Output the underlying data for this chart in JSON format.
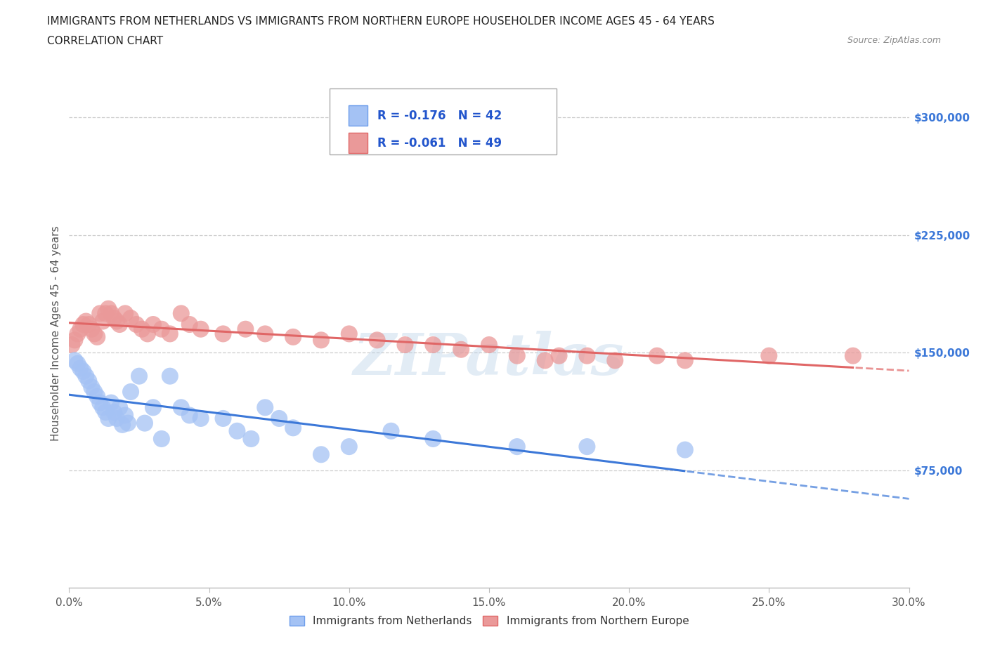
{
  "title_line1": "IMMIGRANTS FROM NETHERLANDS VS IMMIGRANTS FROM NORTHERN EUROPE HOUSEHOLDER INCOME AGES 45 - 64 YEARS",
  "title_line2": "CORRELATION CHART",
  "source": "Source: ZipAtlas.com",
  "ylabel": "Householder Income Ages 45 - 64 years",
  "xlim": [
    0.0,
    0.3
  ],
  "ylim": [
    0,
    325000
  ],
  "xtick_labels": [
    "0.0%",
    "5.0%",
    "10.0%",
    "15.0%",
    "20.0%",
    "25.0%",
    "30.0%"
  ],
  "xtick_values": [
    0.0,
    0.05,
    0.1,
    0.15,
    0.2,
    0.25,
    0.3
  ],
  "ytick_labels": [
    "$75,000",
    "$150,000",
    "$225,000",
    "$300,000"
  ],
  "ytick_values": [
    75000,
    150000,
    225000,
    300000
  ],
  "hgrid_values": [
    75000,
    150000,
    225000,
    300000
  ],
  "netherlands_color": "#a4c2f4",
  "netherlands_edge": "#6d9eeb",
  "northern_europe_color": "#ea9999",
  "northern_europe_edge": "#e06666",
  "blue_line_color": "#3c78d8",
  "pink_line_color": "#e06666",
  "legend_R_netherlands": "-0.176",
  "legend_N_netherlands": "42",
  "legend_R_northern": "-0.061",
  "legend_N_northern": "49",
  "watermark": "ZIPatlas",
  "legend1_label": "Immigrants from Netherlands",
  "legend2_label": "Immigrants from Northern Europe",
  "netherlands_x": [
    0.002,
    0.003,
    0.004,
    0.005,
    0.006,
    0.007,
    0.008,
    0.009,
    0.01,
    0.011,
    0.012,
    0.013,
    0.014,
    0.015,
    0.016,
    0.017,
    0.018,
    0.019,
    0.02,
    0.021,
    0.022,
    0.025,
    0.027,
    0.03,
    0.033,
    0.036,
    0.04,
    0.043,
    0.047,
    0.055,
    0.06,
    0.065,
    0.07,
    0.075,
    0.08,
    0.09,
    0.1,
    0.115,
    0.13,
    0.16,
    0.185,
    0.22
  ],
  "netherlands_y": [
    145000,
    143000,
    140000,
    138000,
    135000,
    132000,
    128000,
    125000,
    122000,
    118000,
    115000,
    112000,
    108000,
    118000,
    112000,
    108000,
    115000,
    104000,
    110000,
    105000,
    125000,
    135000,
    105000,
    115000,
    95000,
    135000,
    115000,
    110000,
    108000,
    108000,
    100000,
    95000,
    115000,
    108000,
    102000,
    85000,
    90000,
    100000,
    95000,
    90000,
    90000,
    88000
  ],
  "northern_europe_x": [
    0.001,
    0.002,
    0.003,
    0.004,
    0.005,
    0.006,
    0.007,
    0.008,
    0.009,
    0.01,
    0.011,
    0.012,
    0.013,
    0.014,
    0.015,
    0.016,
    0.017,
    0.018,
    0.02,
    0.022,
    0.024,
    0.026,
    0.028,
    0.03,
    0.033,
    0.036,
    0.04,
    0.043,
    0.047,
    0.055,
    0.063,
    0.07,
    0.08,
    0.09,
    0.1,
    0.11,
    0.12,
    0.13,
    0.14,
    0.15,
    0.16,
    0.17,
    0.175,
    0.185,
    0.195,
    0.21,
    0.22,
    0.25,
    0.28
  ],
  "northern_europe_y": [
    155000,
    158000,
    162000,
    165000,
    168000,
    170000,
    168000,
    165000,
    162000,
    160000,
    175000,
    170000,
    175000,
    178000,
    175000,
    172000,
    170000,
    168000,
    175000,
    172000,
    168000,
    165000,
    162000,
    168000,
    165000,
    162000,
    175000,
    168000,
    165000,
    162000,
    165000,
    162000,
    160000,
    158000,
    162000,
    158000,
    155000,
    155000,
    152000,
    155000,
    148000,
    145000,
    148000,
    148000,
    145000,
    148000,
    145000,
    148000,
    148000
  ]
}
